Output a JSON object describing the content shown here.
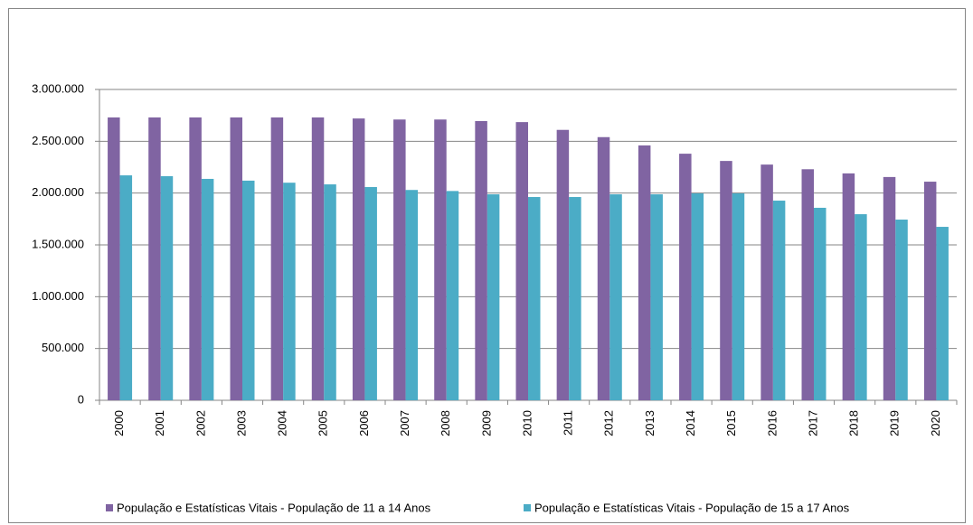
{
  "chart_data": {
    "type": "bar",
    "categories": [
      "2000",
      "2001",
      "2002",
      "2003",
      "2004",
      "2005",
      "2006",
      "2007",
      "2008",
      "2009",
      "2010",
      "2011",
      "2012",
      "2013",
      "2014",
      "2015",
      "2016",
      "2017",
      "2018",
      "2019",
      "2020"
    ],
    "series": [
      {
        "name": "População e Estatísticas Vitais - População de 11 a 14 Anos",
        "color": "#8064a2",
        "values": [
          2730000,
          2730000,
          2730000,
          2730000,
          2730000,
          2730000,
          2720000,
          2710000,
          2710000,
          2695000,
          2685000,
          2610000,
          2540000,
          2460000,
          2380000,
          2310000,
          2275000,
          2230000,
          2190000,
          2155000,
          2110000
        ]
      },
      {
        "name": "População e Estatísticas Vitais - População de 15 a 17 Anos",
        "color": "#4bacc6",
        "values": [
          2171000,
          2163000,
          2137000,
          2120000,
          2100000,
          2084000,
          2058000,
          2030000,
          2020000,
          1988000,
          1962000,
          1962000,
          1988000,
          1988000,
          1997000,
          1997000,
          1927000,
          1858000,
          1796000,
          1744000,
          1674000
        ]
      }
    ],
    "ylim": [
      0,
      3000000
    ],
    "yticks": [
      0,
      {
        "value": 500000,
        "label": "500.000"
      },
      {
        "value": 1000000,
        "label": "1.000.000"
      },
      {
        "value": 1500000,
        "label": "1.500.000"
      },
      {
        "value": 2000000,
        "label": "2.000.000"
      },
      {
        "value": 2500000,
        "label": "2.500.000"
      },
      {
        "value": 3000000,
        "label": "3.000.000"
      }
    ],
    "grid": true
  }
}
